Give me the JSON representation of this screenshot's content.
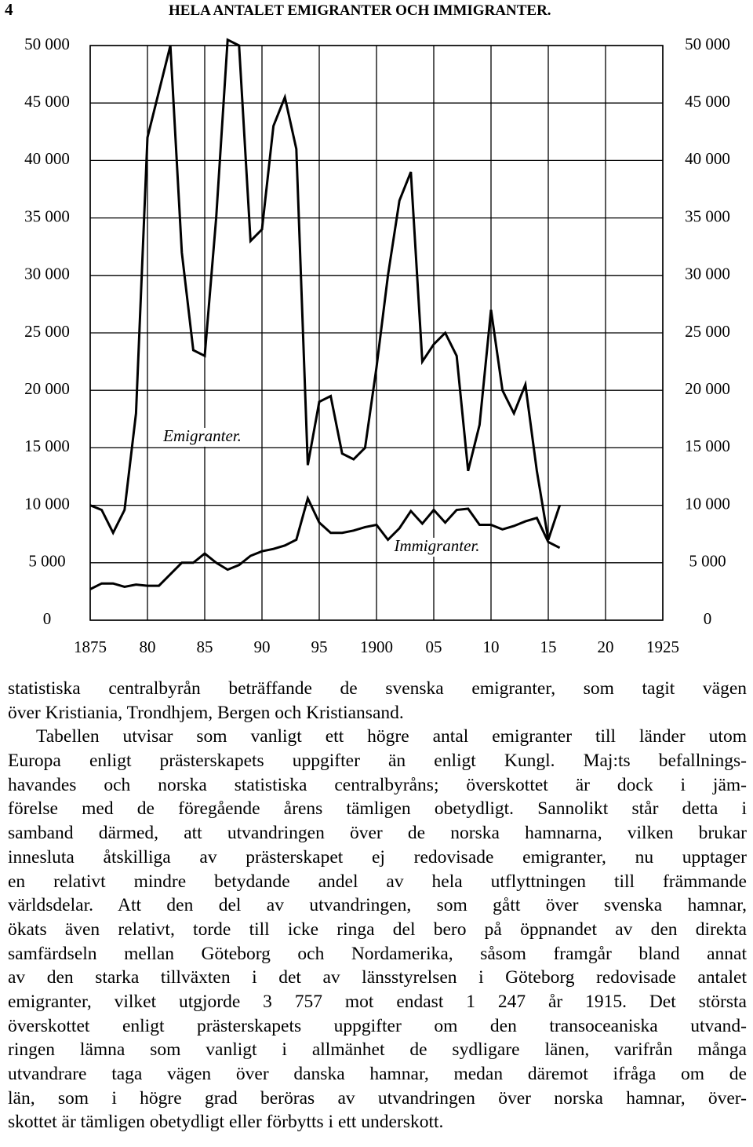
{
  "header": {
    "page_number": "4",
    "title": "HELA ANTALET EMIGRANTER OCH IMMIGRANTER."
  },
  "chart_data": {
    "type": "line",
    "x": [
      1875,
      1876,
      1877,
      1878,
      1879,
      1880,
      1881,
      1882,
      1883,
      1884,
      1885,
      1886,
      1887,
      1888,
      1889,
      1890,
      1891,
      1892,
      1893,
      1894,
      1895,
      1896,
      1897,
      1898,
      1899,
      1900,
      1901,
      1902,
      1903,
      1904,
      1905,
      1906,
      1907,
      1908,
      1909,
      1910,
      1911,
      1912,
      1913,
      1914,
      1915,
      1916
    ],
    "series": [
      {
        "name": "Emigranter.",
        "color": "#000000",
        "values": [
          10000,
          9600,
          7600,
          9600,
          18000,
          42000,
          46000,
          50000,
          32000,
          23500,
          23000,
          35000,
          50500,
          50000,
          33000,
          34000,
          43000,
          45500,
          41000,
          13500,
          19000,
          19500,
          14500,
          14000,
          15000,
          22000,
          30000,
          36500,
          39000,
          22500,
          24000,
          25000,
          23000,
          13000,
          17000,
          27000,
          20000,
          18000,
          20500,
          13000,
          7000,
          10000
        ]
      },
      {
        "name": "Immigranter.",
        "color": "#000000",
        "values": [
          2700,
          3200,
          3200,
          2900,
          3100,
          3000,
          3000,
          4000,
          5000,
          5000,
          5800,
          5000,
          4400,
          4800,
          5600,
          6000,
          6200,
          6500,
          7000,
          10600,
          8500,
          7600,
          7600,
          7800,
          8100,
          8300,
          7000,
          8000,
          9500,
          8400,
          9600,
          8500,
          9600,
          9700,
          8300,
          8300,
          7900,
          8200,
          8600,
          8900,
          6800,
          6300
        ]
      }
    ],
    "xlim": [
      1875,
      1925
    ],
    "xticks": [
      1875,
      {
        "value": 1880,
        "label": "80"
      },
      {
        "value": 1885,
        "label": "85"
      },
      {
        "value": 1890,
        "label": "90"
      },
      {
        "value": 1895,
        "label": "95"
      },
      1900,
      {
        "value": 1905,
        "label": "05"
      },
      {
        "value": 1910,
        "label": "10"
      },
      {
        "value": 1915,
        "label": "15"
      },
      {
        "value": 1920,
        "label": "20"
      },
      1925
    ],
    "ylim": [
      0,
      50000
    ],
    "yticks": [
      0,
      {
        "value": 5000,
        "label": "5 000"
      },
      {
        "value": 10000,
        "label": "10 000"
      },
      {
        "value": 15000,
        "label": "15 000"
      },
      {
        "value": 20000,
        "label": "20 000"
      },
      {
        "value": 25000,
        "label": "25 000"
      },
      {
        "value": 30000,
        "label": "30 000"
      },
      {
        "value": 35000,
        "label": "35 000"
      },
      {
        "value": 40000,
        "label": "40 000"
      },
      {
        "value": 45000,
        "label": "45 000"
      },
      {
        "value": 50000,
        "label": "50 000"
      }
    ],
    "grid": true
  },
  "body": {
    "lines": [
      "statistiska centralbyrån beträffande de svenska emigranter, som tagit vägen",
      "över Kristiania, Trondhjem, Bergen och Kristiansand.",
      "Tabellen utvisar som vanligt ett högre antal emigranter till länder utom",
      "Europa enligt prästerskapets uppgifter än enligt Kungl. Maj:ts befallnings-",
      "havandes och norska statistiska centralbyråns; överskottet är dock i jäm-",
      "förelse med de föregående årens tämligen obetydligt. Sannolikt står detta i",
      "samband därmed, att utvandringen över de norska hamnarna, vilken brukar",
      "innesluta åtskilliga av prästerskapet ej redovisade emigranter, nu upptager",
      "en relativt mindre betydande andel av hela utflyttningen till främmande",
      "världsdelar. Att den del av utvandringen, som gått över svenska hamnar,",
      "ökats även relativt, torde till icke ringa del bero på öppnandet av den direkta",
      "samfärdseln mellan Göteborg och Nordamerika, såsom framgår bland annat",
      "av den starka tillväxten i det av länsstyrelsen i Göteborg redovisade antalet",
      "emigranter, vilket utgjorde 3 757 mot endast 1 247 år 1915. Det största",
      "överskottet enligt prästerskapets uppgifter om den transoceaniska utvand-",
      "ringen lämna som vanligt i allmänhet de sydligare länen, varifrån många",
      "utvandrare taga vägen över danska hamnar, medan däremot ifråga om de",
      "län, som i högre grad beröras av utvandringen över norska hamnar, över-",
      "skottet är tämligen obetydligt eller förbytts i ett underskott."
    ]
  }
}
